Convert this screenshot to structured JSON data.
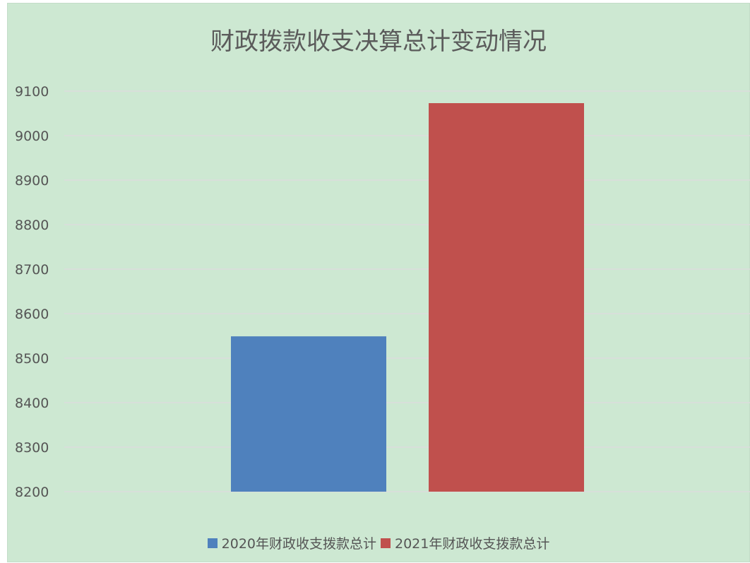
{
  "chart_data": {
    "type": "bar",
    "title": "财政拨款收支决算总计变动情况",
    "categories": [
      ""
    ],
    "series": [
      {
        "name": "2020年财政收支拨款总计",
        "values": [
          8549
        ],
        "color": "#4f81bd"
      },
      {
        "name": "2021年财政收支拨款总计",
        "values": [
          9073
        ],
        "color": "#c0504d"
      }
    ],
    "xlabel": "",
    "ylabel": "",
    "ylim": [
      8200,
      9100
    ],
    "yticks": [
      "9100",
      "9000",
      "8900",
      "8800",
      "8700",
      "8600",
      "8500",
      "8400",
      "8300",
      "8200"
    ],
    "grid": true,
    "legend_position": "bottom"
  }
}
